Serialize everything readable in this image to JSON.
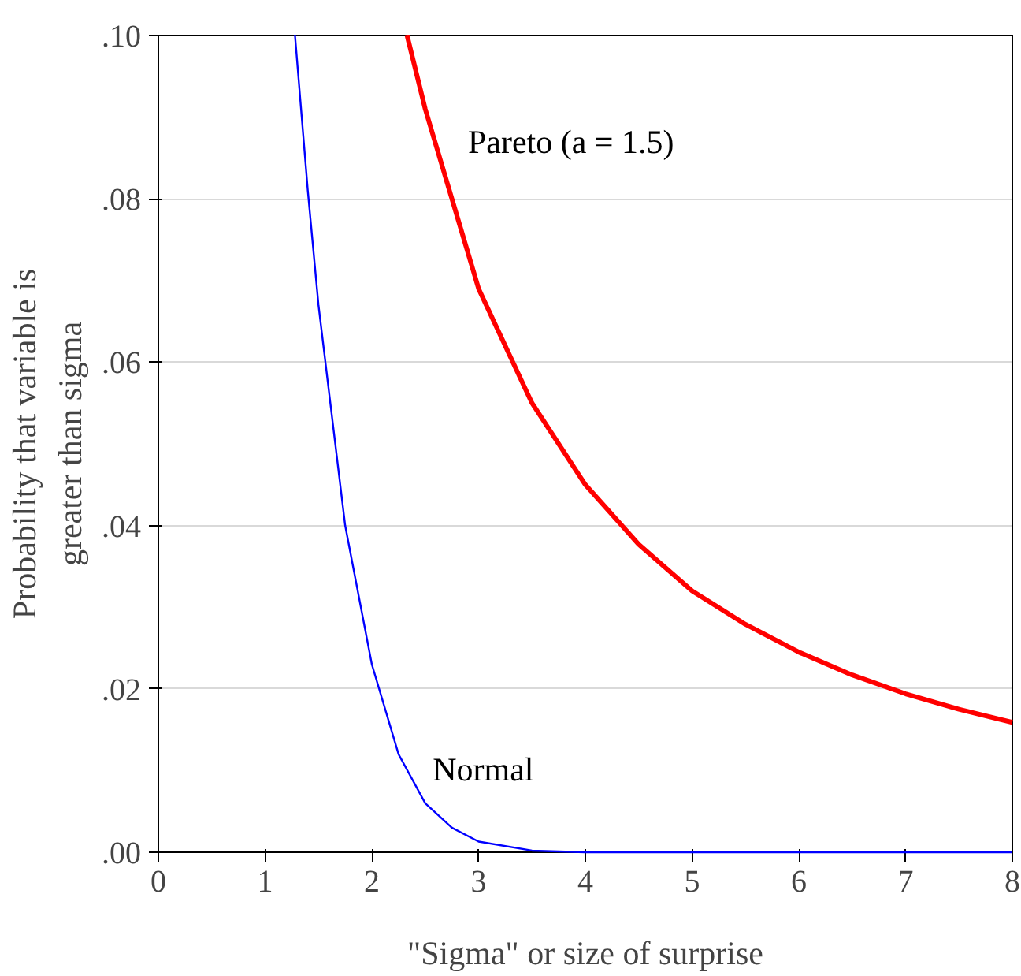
{
  "chart_data": {
    "type": "line",
    "xlabel": "\"Sigma\" or size of surprise",
    "ylabel": "Probability that variable is\ngreater than sigma",
    "x": [
      1.28,
      1.4,
      1.5,
      1.75,
      2,
      2.25,
      2.5,
      2.75,
      3,
      3.5,
      4,
      5,
      6,
      7,
      8
    ],
    "series": [
      {
        "name": "Normal",
        "color": "#0000ff",
        "values": [
          0.1,
          0.081,
          0.067,
          0.04,
          0.023,
          0.012,
          0.006,
          0.003,
          0.0013,
          0.0002,
          0,
          0,
          0,
          0,
          0
        ]
      },
      {
        "name": "Pareto (a = 1.5)",
        "color": "#ff0000",
        "x": [
          2.33,
          2.5,
          3,
          3.5,
          4,
          4.5,
          5,
          5.5,
          6,
          6.5,
          7,
          7.5,
          8
        ],
        "values": [
          0.1,
          0.091,
          0.069,
          0.055,
          0.045,
          0.0377,
          0.032,
          0.0279,
          0.0245,
          0.0217,
          0.0194,
          0.0175,
          0.0159
        ]
      }
    ],
    "xlim": [
      0,
      8
    ],
    "ylim": [
      0,
      0.1
    ],
    "xticks": [
      0,
      1,
      2,
      3,
      4,
      5,
      6,
      7,
      8
    ],
    "yticks": [
      {
        "value": 0,
        "label": ".00"
      },
      {
        "value": 0.02,
        "label": ".02"
      },
      {
        "value": 0.04,
        "label": ".04"
      },
      {
        "value": 0.06,
        "label": ".06"
      },
      {
        "value": 0.08,
        "label": ".08"
      },
      {
        "value": 0.1,
        "label": ".10"
      }
    ],
    "grid": "y",
    "marker": "none",
    "line_style": "solid"
  }
}
